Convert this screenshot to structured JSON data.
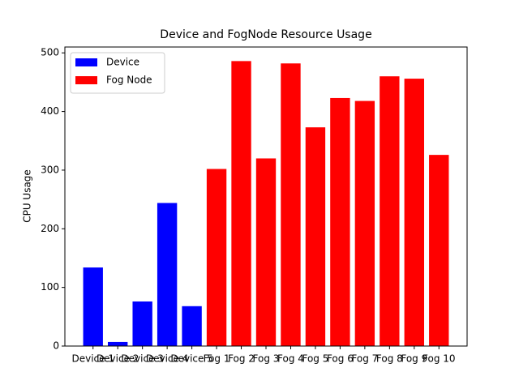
{
  "chart_data": {
    "type": "bar",
    "title": "Device and FogNode Resource Usage",
    "y_label": "CPU Usage",
    "categories": [
      "Device 1",
      "Device 2",
      "Device 3",
      "Device 4",
      "Device 5",
      "Fog 1",
      "Fog 2",
      "Fog 3",
      "Fog 4",
      "Fog 5",
      "Fog 6",
      "Fog 7",
      "Fog 8",
      "Fog 9",
      "Fog 10"
    ],
    "series": [
      {
        "name": "Device",
        "color": "#0000ff",
        "values": [
          134,
          7,
          76,
          244,
          68,
          null,
          null,
          null,
          null,
          null,
          null,
          null,
          null,
          null,
          null
        ]
      },
      {
        "name": "Fog Node",
        "color": "#ff0000",
        "values": [
          null,
          null,
          null,
          null,
          null,
          302,
          486,
          320,
          482,
          373,
          423,
          418,
          460,
          456,
          326
        ]
      }
    ],
    "ylim": [
      0,
      510
    ],
    "yticks": [
      0,
      100,
      200,
      300,
      400,
      500
    ],
    "legend": "upper left"
  }
}
